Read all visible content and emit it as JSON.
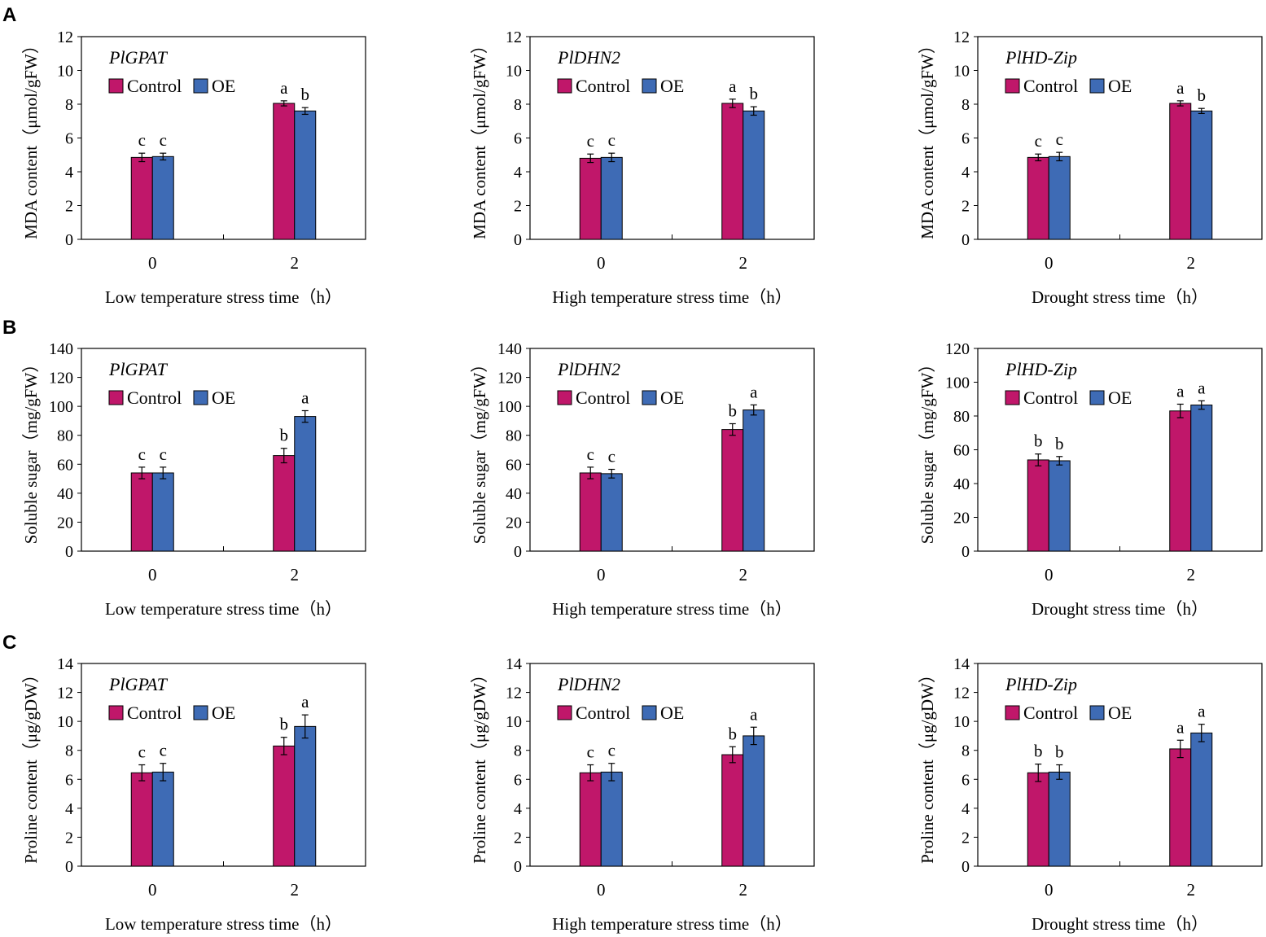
{
  "figure": {
    "row_labels": [
      "A",
      "B",
      "C"
    ],
    "legend_labels": [
      "Control",
      "OE"
    ]
  },
  "chart_data": [
    {
      "type": "bar",
      "title": "PlGPAT",
      "row": "A",
      "ylabel": "MDA content（μmol/gFW）",
      "xlabel": "Low temperature stress time（h）",
      "categories": [
        "0",
        "2"
      ],
      "ylim": [
        0,
        12
      ],
      "yticks": [
        0,
        2,
        4,
        6,
        8,
        10,
        12
      ],
      "series": [
        {
          "name": "Control",
          "color": "#c0176a",
          "values": [
            4.85,
            8.05
          ],
          "errors": [
            0.25,
            0.15
          ],
          "letters": [
            "c",
            "a"
          ]
        },
        {
          "name": "OE",
          "color": "#3e6bb5",
          "values": [
            4.9,
            7.6
          ],
          "errors": [
            0.2,
            0.2
          ],
          "letters": [
            "c",
            "b"
          ]
        }
      ]
    },
    {
      "type": "bar",
      "title": "PlDHN2",
      "row": "A",
      "ylabel": "MDA content（μmol/gFW）",
      "xlabel": "High temperature stress time（h）",
      "categories": [
        "0",
        "2"
      ],
      "ylim": [
        0,
        12
      ],
      "yticks": [
        0,
        2,
        4,
        6,
        8,
        10,
        12
      ],
      "series": [
        {
          "name": "Control",
          "color": "#c0176a",
          "values": [
            4.8,
            8.05
          ],
          "errors": [
            0.25,
            0.25
          ],
          "letters": [
            "c",
            "a"
          ]
        },
        {
          "name": "OE",
          "color": "#3e6bb5",
          "values": [
            4.85,
            7.6
          ],
          "errors": [
            0.25,
            0.25
          ],
          "letters": [
            "c",
            "b"
          ]
        }
      ]
    },
    {
      "type": "bar",
      "title": "PlHD-Zip",
      "row": "A",
      "ylabel": "MDA content（μmol/gFW）",
      "xlabel": "Drought stress time（h）",
      "categories": [
        "0",
        "2"
      ],
      "ylim": [
        0,
        12
      ],
      "yticks": [
        0,
        2,
        4,
        6,
        8,
        10,
        12
      ],
      "series": [
        {
          "name": "Control",
          "color": "#c0176a",
          "values": [
            4.85,
            8.05
          ],
          "errors": [
            0.2,
            0.15
          ],
          "letters": [
            "c",
            "a"
          ]
        },
        {
          "name": "OE",
          "color": "#3e6bb5",
          "values": [
            4.9,
            7.6
          ],
          "errors": [
            0.25,
            0.15
          ],
          "letters": [
            "c",
            "b"
          ]
        }
      ]
    },
    {
      "type": "bar",
      "title": "PlGPAT",
      "row": "B",
      "ylabel": "Soluble sugar（mg/gFW）",
      "xlabel": "Low temperature stress time（h）",
      "categories": [
        "0",
        "2"
      ],
      "ylim": [
        0,
        140
      ],
      "yticks": [
        0,
        20,
        40,
        60,
        80,
        100,
        120,
        140
      ],
      "series": [
        {
          "name": "Control",
          "color": "#c0176a",
          "values": [
            54,
            66
          ],
          "errors": [
            4,
            5
          ],
          "letters": [
            "c",
            "b"
          ]
        },
        {
          "name": "OE",
          "color": "#3e6bb5",
          "values": [
            54,
            93
          ],
          "errors": [
            4,
            4
          ],
          "letters": [
            "c",
            "a"
          ]
        }
      ]
    },
    {
      "type": "bar",
      "title": "PlDHN2",
      "row": "B",
      "ylabel": "Soluble sugar（mg/gFW）",
      "xlabel": "High temperature stress time（h）",
      "categories": [
        "0",
        "2"
      ],
      "ylim": [
        0,
        140
      ],
      "yticks": [
        0,
        20,
        40,
        60,
        80,
        100,
        120,
        140
      ],
      "series": [
        {
          "name": "Control",
          "color": "#c0176a",
          "values": [
            54,
            84
          ],
          "errors": [
            4,
            4
          ],
          "letters": [
            "c",
            "b"
          ]
        },
        {
          "name": "OE",
          "color": "#3e6bb5",
          "values": [
            53.5,
            97.5
          ],
          "errors": [
            3,
            3.5
          ],
          "letters": [
            "c",
            "a"
          ]
        }
      ]
    },
    {
      "type": "bar",
      "title": "PlHD-Zip",
      "row": "B",
      "ylabel": "Soluble sugar（mg/gFW）",
      "xlabel": "Drought stress time（h）",
      "categories": [
        "0",
        "2"
      ],
      "ylim": [
        0,
        120
      ],
      "yticks": [
        0,
        20,
        40,
        60,
        80,
        100,
        120
      ],
      "series": [
        {
          "name": "Control",
          "color": "#c0176a",
          "values": [
            54,
            83
          ],
          "errors": [
            3.5,
            4
          ],
          "letters": [
            "b",
            "a"
          ]
        },
        {
          "name": "OE",
          "color": "#3e6bb5",
          "values": [
            53.5,
            86.5
          ],
          "errors": [
            2.5,
            2.5
          ],
          "letters": [
            "b",
            "a"
          ]
        }
      ]
    },
    {
      "type": "bar",
      "title": "PlGPAT",
      "row": "C",
      "ylabel": "Proline content（μg/gDW）",
      "xlabel": "Low temperature stress time（h）",
      "categories": [
        "0",
        "2"
      ],
      "ylim": [
        0,
        14
      ],
      "yticks": [
        0,
        2,
        4,
        6,
        8,
        10,
        12,
        14
      ],
      "series": [
        {
          "name": "Control",
          "color": "#c0176a",
          "values": [
            6.45,
            8.3
          ],
          "errors": [
            0.55,
            0.6
          ],
          "letters": [
            "c",
            "b"
          ]
        },
        {
          "name": "OE",
          "color": "#3e6bb5",
          "values": [
            6.5,
            9.65
          ],
          "errors": [
            0.6,
            0.8
          ],
          "letters": [
            "c",
            "a"
          ]
        }
      ]
    },
    {
      "type": "bar",
      "title": "PlDHN2",
      "row": "C",
      "ylabel": "Proline content（μg/gDW）",
      "xlabel": "High temperature stress time（h）",
      "categories": [
        "0",
        "2"
      ],
      "ylim": [
        0,
        14
      ],
      "yticks": [
        0,
        2,
        4,
        6,
        8,
        10,
        12,
        14
      ],
      "series": [
        {
          "name": "Control",
          "color": "#c0176a",
          "values": [
            6.45,
            7.7
          ],
          "errors": [
            0.55,
            0.55
          ],
          "letters": [
            "c",
            "b"
          ]
        },
        {
          "name": "OE",
          "color": "#3e6bb5",
          "values": [
            6.5,
            9.0
          ],
          "errors": [
            0.6,
            0.6
          ],
          "letters": [
            "c",
            "a"
          ]
        }
      ]
    },
    {
      "type": "bar",
      "title": "PlHD-Zip",
      "row": "C",
      "ylabel": "Proline content（μg/gDW）",
      "xlabel": "Drought stress time（h）",
      "categories": [
        "0",
        "2"
      ],
      "ylim": [
        0,
        14
      ],
      "yticks": [
        0,
        2,
        4,
        6,
        8,
        10,
        12,
        14
      ],
      "series": [
        {
          "name": "Control",
          "color": "#c0176a",
          "values": [
            6.45,
            8.1
          ],
          "errors": [
            0.6,
            0.6
          ],
          "letters": [
            "b",
            "a"
          ]
        },
        {
          "name": "OE",
          "color": "#3e6bb5",
          "values": [
            6.5,
            9.2
          ],
          "errors": [
            0.5,
            0.6
          ],
          "letters": [
            "b",
            "a"
          ]
        }
      ]
    }
  ]
}
